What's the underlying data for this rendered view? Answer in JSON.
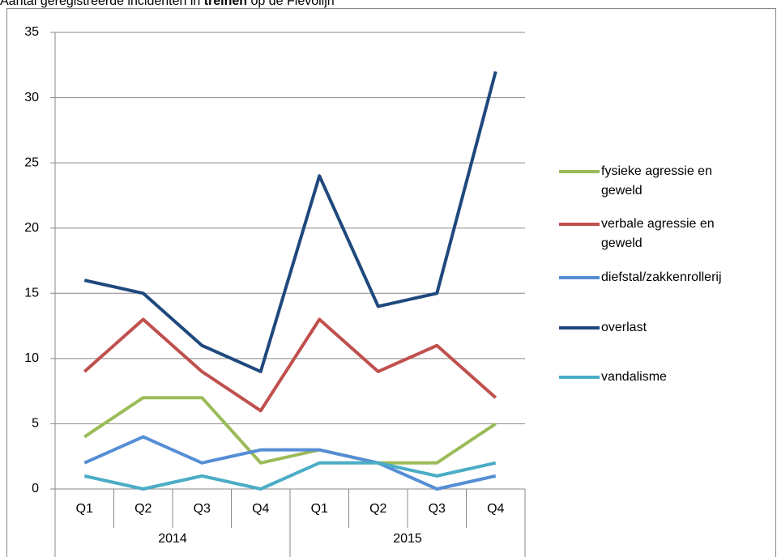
{
  "chart_data": {
    "type": "line",
    "title_parts": [
      "Aantal geregistreerde incidenten in ",
      "treinen",
      " op de Flevolijn"
    ],
    "categories": [
      "Q1",
      "Q2",
      "Q3",
      "Q4",
      "Q1",
      "Q2",
      "Q3",
      "Q4"
    ],
    "groups": [
      "2014",
      "2015"
    ],
    "series": [
      {
        "name": "fysieke agressie en geweld",
        "color": "#9bbb59",
        "values": [
          4,
          7,
          7,
          2,
          3,
          2,
          2,
          5
        ]
      },
      {
        "name": "verbale agressie en geweld",
        "color": "#c0504d",
        "values": [
          9,
          13,
          9,
          6,
          13,
          9,
          11,
          7
        ]
      },
      {
        "name": "diefstal/zakkenrollerij",
        "color": "#558ed5",
        "values": [
          2,
          4,
          2,
          3,
          3,
          2,
          0,
          1
        ]
      },
      {
        "name": "overlast",
        "color": "#1f497d",
        "values": [
          16,
          15,
          11,
          9,
          24,
          14,
          15,
          32
        ]
      },
      {
        "name": "vandalisme",
        "color": "#4bacc6",
        "values": [
          1,
          0,
          1,
          0,
          2,
          2,
          1,
          2
        ]
      }
    ],
    "ylim": [
      0,
      35
    ],
    "yticks": [
      0,
      5,
      10,
      15,
      20,
      25,
      30,
      35
    ],
    "grid": true,
    "legend": "right"
  }
}
